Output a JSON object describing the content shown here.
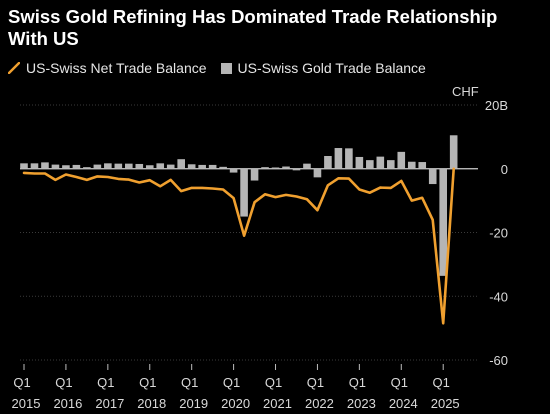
{
  "title": "Swiss Gold Refining Has Dominated Trade Relationship With US",
  "legend": {
    "net_label": "US-Swiss Net Trade Balance",
    "gold_label": "US-Swiss Gold Trade Balance"
  },
  "colors": {
    "net": "#f0a02f",
    "gold": "#b5b5b5",
    "background": "#000000",
    "grid": "#3a3a3a"
  },
  "chart_data": {
    "type": "bar+line",
    "title": "Swiss Gold Refining Has Dominated Trade Relationship With US",
    "unit": "CHF",
    "ylim": [
      -60,
      20
    ],
    "y_ticks": [
      20,
      0,
      -20,
      -40,
      -60
    ],
    "y_tick_labels": [
      "20B",
      "0",
      "-20",
      "-40",
      "-60"
    ],
    "x_ticks": [
      {
        "q": "Q1",
        "year": "2015",
        "index": 0
      },
      {
        "q": "Q1",
        "year": "2016",
        "index": 4
      },
      {
        "q": "Q1",
        "year": "2017",
        "index": 8
      },
      {
        "q": "Q1",
        "year": "2018",
        "index": 12
      },
      {
        "q": "Q1",
        "year": "2019",
        "index": 16
      },
      {
        "q": "Q1",
        "year": "2020",
        "index": 20
      },
      {
        "q": "Q1",
        "year": "2021",
        "index": 24
      },
      {
        "q": "Q1",
        "year": "2022",
        "index": 28
      },
      {
        "q": "Q1",
        "year": "2023",
        "index": 32
      },
      {
        "q": "Q1",
        "year": "2024",
        "index": 36
      },
      {
        "q": "Q1",
        "year": "2025",
        "index": 40
      }
    ],
    "series": [
      {
        "name": "US-Swiss Gold Trade Balance",
        "type": "bar",
        "values": [
          1.7,
          1.7,
          2.0,
          1.3,
          1.1,
          1.2,
          0.5,
          1.3,
          1.7,
          1.6,
          1.6,
          1.5,
          1.1,
          1.7,
          1.3,
          3.0,
          1.4,
          1.2,
          1.2,
          0.6,
          -1.2,
          -15.0,
          -3.7,
          0.5,
          0.4,
          0.7,
          -0.5,
          1.6,
          -2.7,
          4.0,
          6.5,
          6.4,
          3.7,
          2.7,
          3.8,
          2.7,
          5.3,
          2.2,
          2.1,
          -4.8,
          -33.6,
          10.5,
          0.2
        ]
      },
      {
        "name": "US-Swiss Net Trade Balance",
        "type": "line",
        "values": [
          -1.3,
          -1.5,
          -1.5,
          -3.5,
          -1.8,
          -2.6,
          -3.5,
          -2.4,
          -2.6,
          -3.2,
          -3.4,
          -4.3,
          -3.6,
          -5.5,
          -3.5,
          -7.0,
          -6.0,
          -6.0,
          -6.2,
          -6.5,
          -9.2,
          -21.0,
          -10.5,
          -8.0,
          -8.9,
          -8.2,
          -8.7,
          -9.6,
          -13.0,
          -5.2,
          -3.0,
          -3.1,
          -6.5,
          -7.5,
          -5.9,
          -6.0,
          -3.8,
          -10.0,
          -9.1,
          -16.0,
          -48.5,
          0.0
        ]
      }
    ]
  }
}
